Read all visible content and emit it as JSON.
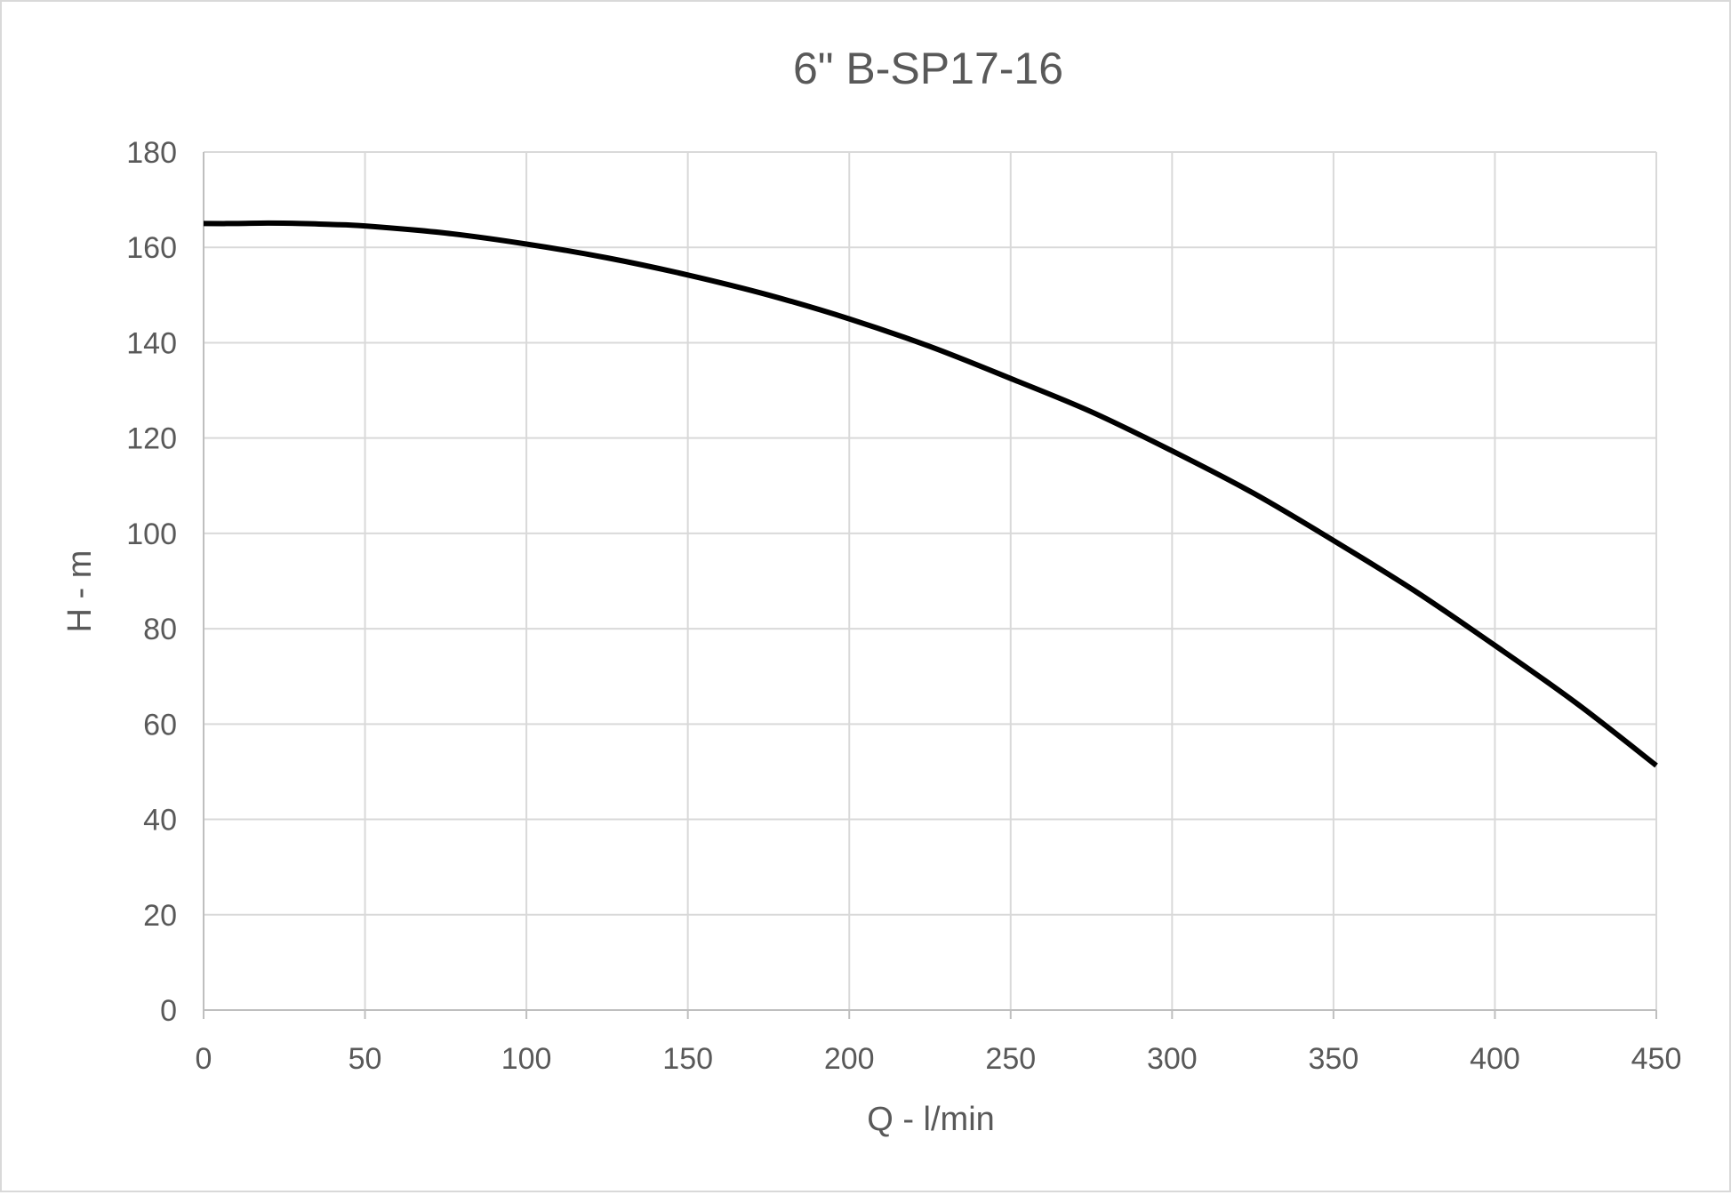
{
  "chart_data": {
    "type": "line",
    "title": "6\" B-SP17-16",
    "xlabel": "Q - l/min",
    "ylabel": "H - m",
    "xlim": [
      0,
      450
    ],
    "ylim": [
      0,
      180
    ],
    "x_ticks": [
      0,
      50,
      100,
      150,
      200,
      250,
      300,
      350,
      400,
      450
    ],
    "y_ticks": [
      0,
      20,
      40,
      60,
      80,
      100,
      120,
      140,
      160,
      180
    ],
    "grid": true,
    "legend": "none",
    "series": [
      {
        "color": "#000000",
        "x": [
          0,
          10,
          20,
          30,
          40,
          50,
          75,
          100,
          125,
          150,
          175,
          200,
          225,
          250,
          275,
          300,
          325,
          350,
          375,
          400,
          425,
          450
        ],
        "y": [
          165,
          165,
          165.1,
          165,
          164.8,
          164.5,
          163,
          160.7,
          157.8,
          154.2,
          150,
          145,
          139.2,
          132.5,
          125.5,
          117.3,
          108.5,
          98.5,
          88,
          76.5,
          64.5,
          51.3
        ]
      }
    ]
  }
}
